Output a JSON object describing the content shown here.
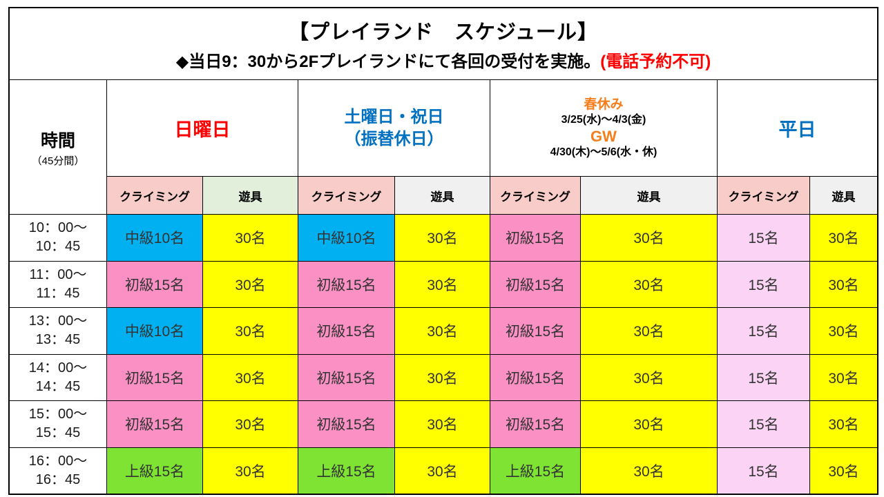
{
  "title": {
    "line1": "【プレイランド　スケジュール】",
    "line2_black": "◆当日9：30から2Fプレイランドにて各回の受付を実施。",
    "line2_red": "(電話予約不可)"
  },
  "colors": {
    "cyan": "#00B0F0",
    "pink": "#FB90C4",
    "pale_pink": "#FBD3F5",
    "yellow": "#FFFF00",
    "green": "#7EE332",
    "sub_pink": "#F8CCC8",
    "sub_green": "#E2EFDA",
    "sub_gray": "#F0F0F0",
    "red": "#FF0000",
    "blue": "#0070C0",
    "orange": "#F57E1C"
  },
  "time_header": {
    "label": "時間",
    "sub": "（45分間）"
  },
  "day_groups": {
    "sunday": {
      "label": "日曜日"
    },
    "saturday": {
      "line1": "土曜日・祝日",
      "line2": "（振替休日）"
    },
    "holiday": {
      "spring_label": "春休み",
      "spring_dates": "3/25(水)～4/3(金)",
      "gw_label": "GW",
      "gw_dates": "4/30(木)～5/6(水・休)"
    },
    "weekday": {
      "label": "平日"
    }
  },
  "sub_header": {
    "cells": [
      {
        "label": "クライミング",
        "bg": "sub_pink"
      },
      {
        "label": "遊具",
        "bg": "sub_green"
      },
      {
        "label": "クライミング",
        "bg": "sub_pink"
      },
      {
        "label": "遊具",
        "bg": "sub_gray"
      },
      {
        "label": "クライミング",
        "bg": "sub_pink"
      },
      {
        "label": "遊具",
        "bg": "sub_gray"
      },
      {
        "label": "クライミング",
        "bg": "sub_pink"
      },
      {
        "label": "遊具",
        "bg": "sub_gray"
      }
    ]
  },
  "rows": [
    {
      "time1": "10：00～",
      "time2": "10：45",
      "cells": [
        {
          "text": "中級10名",
          "bg": "cyan"
        },
        {
          "text": "30名",
          "bg": "yellow"
        },
        {
          "text": "中級10名",
          "bg": "cyan"
        },
        {
          "text": "30名",
          "bg": "yellow"
        },
        {
          "text": "初級15名",
          "bg": "pink"
        },
        {
          "text": "30名",
          "bg": "yellow"
        },
        {
          "text": "15名",
          "bg": "pale_pink"
        },
        {
          "text": "30名",
          "bg": "yellow"
        }
      ]
    },
    {
      "time1": "11：00～",
      "time2": "11：45",
      "cells": [
        {
          "text": "初級15名",
          "bg": "pink"
        },
        {
          "text": "30名",
          "bg": "yellow"
        },
        {
          "text": "初級15名",
          "bg": "pink"
        },
        {
          "text": "30名",
          "bg": "yellow"
        },
        {
          "text": "初級15名",
          "bg": "pink"
        },
        {
          "text": "30名",
          "bg": "yellow"
        },
        {
          "text": "15名",
          "bg": "pale_pink"
        },
        {
          "text": "30名",
          "bg": "yellow"
        }
      ]
    },
    {
      "time1": "13：00～",
      "time2": "13：45",
      "cells": [
        {
          "text": "中級10名",
          "bg": "cyan"
        },
        {
          "text": "30名",
          "bg": "yellow"
        },
        {
          "text": "初級15名",
          "bg": "pink"
        },
        {
          "text": "30名",
          "bg": "yellow"
        },
        {
          "text": "初級15名",
          "bg": "pink"
        },
        {
          "text": "30名",
          "bg": "yellow"
        },
        {
          "text": "15名",
          "bg": "pale_pink"
        },
        {
          "text": "30名",
          "bg": "yellow"
        }
      ]
    },
    {
      "time1": "14：00～",
      "time2": "14：45",
      "cells": [
        {
          "text": "初級15名",
          "bg": "pink"
        },
        {
          "text": "30名",
          "bg": "yellow"
        },
        {
          "text": "初級15名",
          "bg": "pink"
        },
        {
          "text": "30名",
          "bg": "yellow"
        },
        {
          "text": "初級15名",
          "bg": "pink"
        },
        {
          "text": "30名",
          "bg": "yellow"
        },
        {
          "text": "15名",
          "bg": "pale_pink"
        },
        {
          "text": "30名",
          "bg": "yellow"
        }
      ]
    },
    {
      "time1": "15：00～",
      "time2": "15：45",
      "cells": [
        {
          "text": "初級15名",
          "bg": "pink"
        },
        {
          "text": "30名",
          "bg": "yellow"
        },
        {
          "text": "初級15名",
          "bg": "pink"
        },
        {
          "text": "30名",
          "bg": "yellow"
        },
        {
          "text": "初級15名",
          "bg": "pink"
        },
        {
          "text": "30名",
          "bg": "yellow"
        },
        {
          "text": "15名",
          "bg": "pale_pink"
        },
        {
          "text": "30名",
          "bg": "yellow"
        }
      ]
    },
    {
      "time1": "16：00～",
      "time2": "16：45",
      "cells": [
        {
          "text": "上級15名",
          "bg": "green"
        },
        {
          "text": "30名",
          "bg": "yellow"
        },
        {
          "text": "上級15名",
          "bg": "green"
        },
        {
          "text": "30名",
          "bg": "yellow"
        },
        {
          "text": "上級15名",
          "bg": "green"
        },
        {
          "text": "30名",
          "bg": "yellow"
        },
        {
          "text": "15名",
          "bg": "pale_pink"
        },
        {
          "text": "30名",
          "bg": "yellow"
        }
      ]
    }
  ]
}
